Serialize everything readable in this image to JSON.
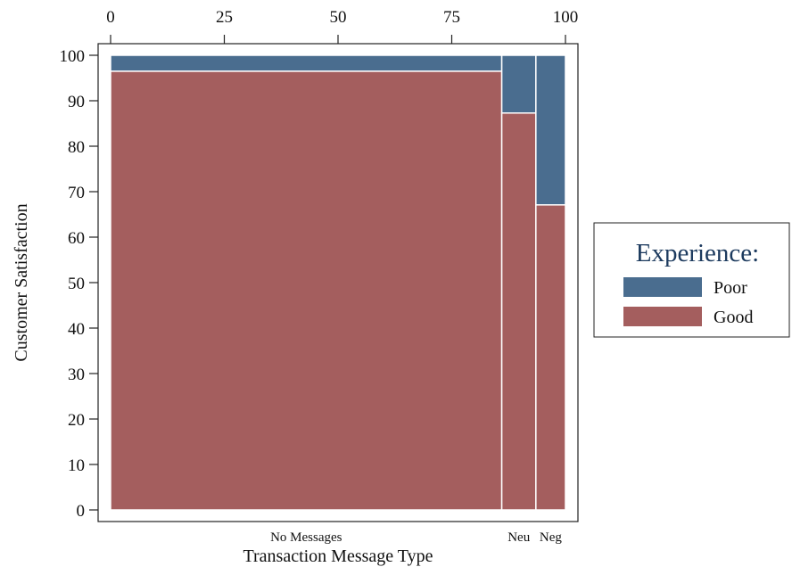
{
  "chart_data": {
    "type": "mosaic",
    "xlabel": "Transaction Message Type",
    "ylabel": "Customer Satisfaction",
    "x_ticks": [
      0,
      25,
      50,
      75,
      100
    ],
    "y_ticks": [
      0,
      10,
      20,
      30,
      40,
      50,
      60,
      70,
      80,
      90,
      100
    ],
    "xlim": [
      0,
      100
    ],
    "ylim": [
      0,
      100
    ],
    "categories": [
      {
        "label": "No Messages",
        "width": 86,
        "good": 96.5
      },
      {
        "label": "Neu",
        "width": 7.5,
        "good": 87.3
      },
      {
        "label": "Neg",
        "width": 6.5,
        "good": 67.1
      }
    ],
    "series": [
      {
        "name": "Poor",
        "color": "#4a6d8f"
      },
      {
        "name": "Good",
        "color": "#a45e5e"
      }
    ],
    "legend": {
      "title": "Experience:",
      "placement": "right"
    }
  }
}
